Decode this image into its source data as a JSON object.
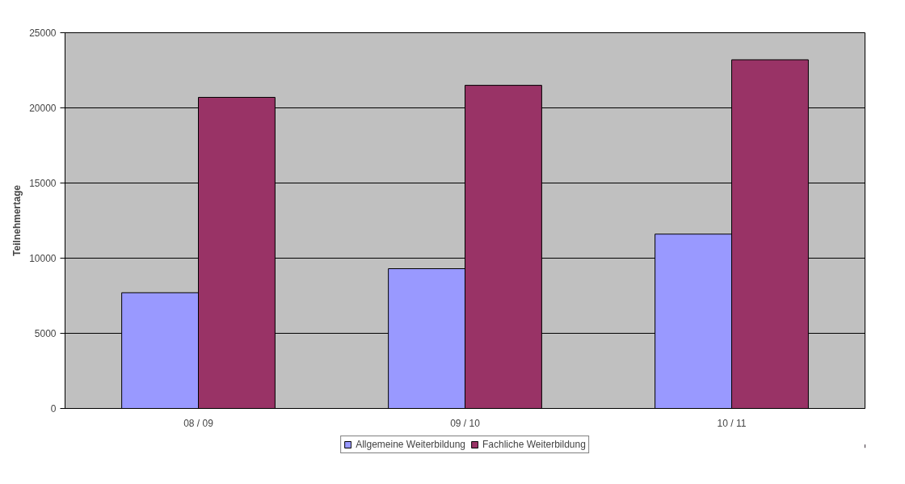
{
  "chart_data": {
    "type": "bar",
    "ylabel": "Teilnehmertage",
    "categories": [
      "08 / 09",
      "09 / 10",
      "10 / 11"
    ],
    "series": [
      {
        "name": "Allgemeine Weiterbildung",
        "color": "#9999ff",
        "values": [
          7700,
          9300,
          11600
        ]
      },
      {
        "name": "Fachliche Weiterbildung",
        "color": "#993366",
        "values": [
          20700,
          21500,
          23200
        ]
      }
    ],
    "ylim": [
      0,
      25000
    ],
    "yticks": [
      0,
      5000,
      10000,
      15000,
      20000,
      25000
    ],
    "grid": "y",
    "legend": "bottom"
  }
}
